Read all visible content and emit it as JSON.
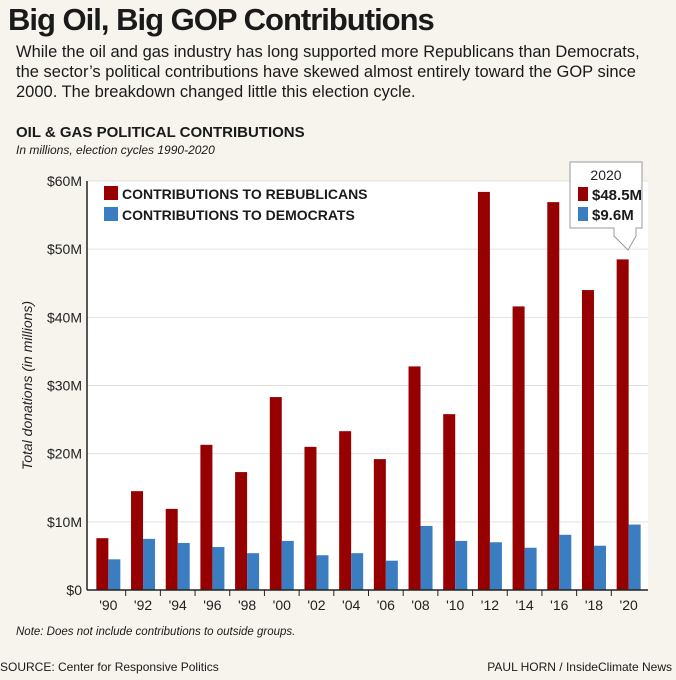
{
  "header": {
    "title": "Big Oil, Big GOP Contributions",
    "subtitle": "While the oil and gas industry has long supported more Republicans than Democrats, the sector’s political contributions have skewed almost entirely toward the GOP since 2000. The breakdown changed little this election cycle."
  },
  "footer": {
    "note": "Note: Does not include contributions to outside groups.",
    "source": "SOURCE: Center for Responsive Politics",
    "credit": "PAUL HORN / InsideClimate News"
  },
  "colors": {
    "republicans": "#960000",
    "democrats": "#3a7dc0",
    "background": "#f6f4ec"
  },
  "chart_data": {
    "type": "bar",
    "title": "OIL & GAS POLITICAL CONTRIBUTIONS",
    "subtitle": "In millions, election cycles 1990-2020",
    "ylabel": "Total donations (in millions)",
    "xlabel": "",
    "ylim": [
      0,
      60
    ],
    "yticks": [
      "$0",
      "$10M",
      "$20M",
      "$30M",
      "$40M",
      "$50M",
      "$60M"
    ],
    "grid": true,
    "legend": "top-left",
    "categories": [
      "'90",
      "'92",
      "'94",
      "'96",
      "'98",
      "'00",
      "'02",
      "'04",
      "'06",
      "'08",
      "'10",
      "'12",
      "'14",
      "'16",
      "'18",
      "'20"
    ],
    "series": [
      {
        "name": "CONTRIBUTIONS TO REBUBLICANS",
        "values": [
          7.6,
          14.5,
          11.9,
          21.3,
          17.3,
          28.3,
          21.0,
          23.3,
          19.2,
          32.8,
          25.8,
          58.4,
          41.6,
          56.9,
          44.0,
          48.5
        ]
      },
      {
        "name": "CONTRIBUTIONS TO DEMOCRATS",
        "values": [
          4.5,
          7.5,
          6.9,
          6.3,
          5.4,
          7.2,
          5.1,
          5.4,
          4.3,
          9.4,
          7.2,
          7.0,
          6.2,
          8.1,
          6.5,
          9.6
        ]
      }
    ],
    "annotation": {
      "year": "2020",
      "republicans": "$48.5M",
      "democrats": "$9.6M"
    }
  }
}
